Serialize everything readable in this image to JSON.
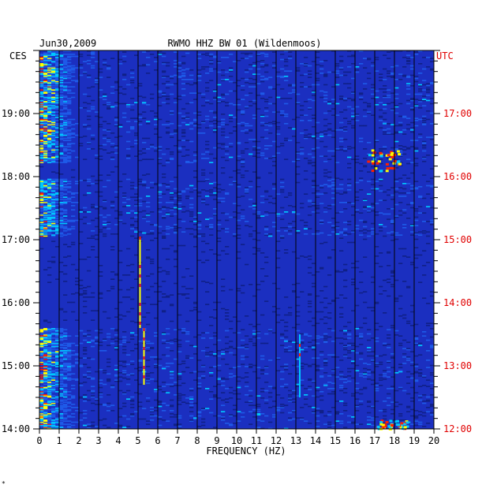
{
  "chart_data": {
    "type": "heatmap",
    "title": "RWMO HHZ BW 01 (Wildenmoos)",
    "date": "Jun30,2009",
    "xlabel": "FREQUENCY (HZ)",
    "left_timezone": "CES",
    "right_timezone": "UTC",
    "xlim": [
      0,
      20
    ],
    "x_ticks": [
      "0",
      "1",
      "2",
      "3",
      "4",
      "5",
      "6",
      "7",
      "8",
      "9",
      "10",
      "11",
      "12",
      "13",
      "14",
      "15",
      "16",
      "17",
      "18",
      "19",
      "20"
    ],
    "left_hours_range": [
      14,
      20
    ],
    "left_y_ticks": [
      {
        "hour": 19,
        "label": "19:00"
      },
      {
        "hour": 18,
        "label": "18:00"
      },
      {
        "hour": 17,
        "label": "17:00"
      },
      {
        "hour": 16,
        "label": "16:00"
      },
      {
        "hour": 15,
        "label": "15:00"
      },
      {
        "hour": 14,
        "label": "14:00"
      }
    ],
    "right_y_ticks": [
      {
        "hour": 19,
        "label": "17:00"
      },
      {
        "hour": 18,
        "label": "16:00"
      },
      {
        "hour": 17,
        "label": "15:00"
      },
      {
        "hour": 16,
        "label": "14:00"
      },
      {
        "hour": 15,
        "label": "13:00"
      },
      {
        "hour": 14,
        "label": "12:00"
      }
    ],
    "colors": {
      "background": "#1b2fc0",
      "quiet": "#102088",
      "low": "#1e5ae8",
      "mid": "#00c8ff",
      "high": "#ffff00",
      "peak": "#ff2000"
    },
    "data_gaps_hours": [
      [
        15.6,
        17.05
      ],
      [
        17.95,
        18.2
      ]
    ],
    "low_frequency_band_hz": [
      0,
      1.8
    ],
    "features": [
      {
        "name": "5 Hz line",
        "freq_hz": 5.1,
        "hours": [
          15.6,
          17.05
        ],
        "intensity": "high"
      },
      {
        "name": "5.3 Hz line",
        "freq_hz": 5.3,
        "hours": [
          14.7,
          15.6
        ],
        "intensity": "high"
      },
      {
        "name": "13.2 Hz line",
        "freq_hz": 13.2,
        "hours": [
          14.5,
          15.5
        ],
        "intensity": "mid"
      },
      {
        "name": "17.5 Hz burst",
        "freq_hz": 17.4,
        "hours": [
          18.1,
          18.45
        ],
        "intensity": "peak"
      },
      {
        "name": "17.8 Hz burst",
        "freq_hz": 17.8,
        "hours": [
          14.0,
          14.15
        ],
        "intensity": "high"
      }
    ],
    "footer_mark": "*"
  }
}
